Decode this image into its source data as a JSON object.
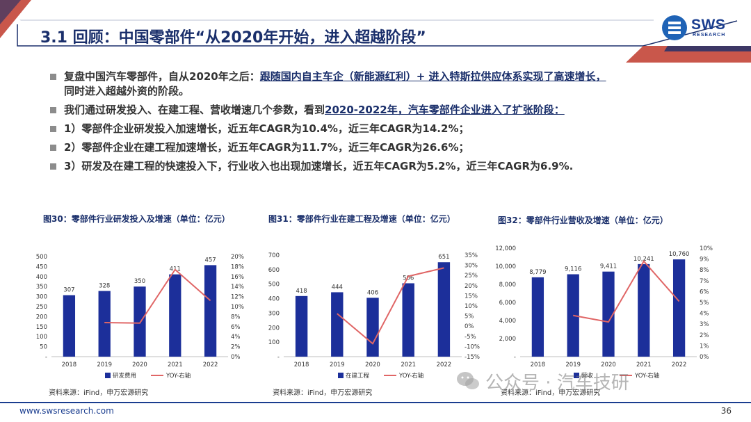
{
  "header": {
    "title": "3.1 回顾：中国零部件“从2020年开始，进入超越阶段”",
    "logo_text": "SWS",
    "logo_sub": "RESEARCH",
    "accent": "#c0392b",
    "brand": "#1a3d8f"
  },
  "bullets": [
    {
      "pre": "复盘中国汽车零部件，自从2020年之后：",
      "u": "跟随国内自主车企（新能源红利）+ 进入特斯拉供应体系实现了高速增长，",
      "post": "同时进入超越外资的阶段。"
    },
    {
      "pre": "我们通过研发投入、在建工程、营收增速几个参数，看到",
      "u": "2020-2022年，汽车零部件企业进入了扩张阶段：",
      "post": ""
    },
    {
      "pre": "1）零部件企业研发投入加速增长，近五年CAGR为10.4%，近三年CAGR为14.2%；",
      "u": "",
      "post": ""
    },
    {
      "pre": "2）零部件企业在建工程加速增长，近五年CAGR为11.7%，近三年CAGR为26.6%；",
      "u": "",
      "post": ""
    },
    {
      "pre": "3）研发及在建工程的快速投入下，行业收入也出现加速增长，近五年CAGR为5.2%，近三年CAGR为6.9%.",
      "u": "",
      "post": ""
    }
  ],
  "charts": [
    {
      "title": "图30：零部件行业研发投入及增速（单位：亿元）",
      "source": "资料来源：iFind，申万宏源研究"
    },
    {
      "title": "图31：零部件行业在建工程及增速（单位：亿元）",
      "source": "资料来源：iFind，申万宏源研究"
    },
    {
      "title": "图32：零部件行业营收及增速（单位：亿元）",
      "source": "资料来源：iFind，申万宏源研究"
    }
  ],
  "chart_data": [
    {
      "type": "bar",
      "categories": [
        "2018",
        "2019",
        "2020",
        "2021",
        "2022"
      ],
      "series": [
        {
          "name": "研发费用",
          "values": [
            307,
            328,
            350,
            411,
            457
          ],
          "labels": [
            "307",
            "328",
            "350",
            "411",
            "457"
          ],
          "color": "#1c2f9a"
        },
        {
          "name": "YOY-右轴",
          "type": "line",
          "values": [
            null,
            6.8,
            6.7,
            17.4,
            11.2
          ],
          "color": "#e06666"
        }
      ],
      "ylim": [
        0,
        500
      ],
      "yticks": [
        "-",
        "50",
        "100",
        "150",
        "200",
        "250",
        "300",
        "350",
        "400",
        "450",
        "500"
      ],
      "y2lim": [
        0,
        20
      ],
      "y2ticks": [
        "0%",
        "2%",
        "4%",
        "6%",
        "8%",
        "10%",
        "12%",
        "14%",
        "16%",
        "18%",
        "20%"
      ]
    },
    {
      "type": "bar",
      "categories": [
        "2018",
        "2019",
        "2020",
        "2021",
        "2022"
      ],
      "series": [
        {
          "name": "在建工程",
          "values": [
            418,
            444,
            406,
            506,
            651
          ],
          "labels": [
            "418",
            "444",
            "406",
            "506",
            "651"
          ],
          "color": "#1c2f9a"
        },
        {
          "name": "YOY-右轴",
          "type": "line",
          "values": [
            null,
            6.2,
            -8.6,
            24.6,
            28.7
          ],
          "color": "#e06666"
        }
      ],
      "ylim": [
        0,
        700
      ],
      "yticks": [
        "-",
        "100",
        "200",
        "300",
        "400",
        "500",
        "600",
        "700"
      ],
      "y2lim": [
        -15,
        35
      ],
      "y2ticks": [
        "-15%",
        "-10%",
        "-5%",
        "0%",
        "5%",
        "10%",
        "15%",
        "20%",
        "25%",
        "30%",
        "35%"
      ]
    },
    {
      "type": "bar",
      "categories": [
        "2018",
        "2019",
        "2020",
        "2021",
        "2022"
      ],
      "series": [
        {
          "name": "营收",
          "values": [
            8779,
            9116,
            9411,
            10241,
            10760
          ],
          "labels": [
            "8,779",
            "9,116",
            "9,411",
            "10,241",
            "10,760"
          ],
          "color": "#1c2f9a"
        },
        {
          "name": "YOY-右轴",
          "type": "line",
          "values": [
            null,
            3.8,
            3.2,
            8.8,
            5.1
          ],
          "color": "#e06666"
        }
      ],
      "ylim": [
        0,
        12000
      ],
      "yticks": [
        "-",
        "2,000",
        "4,000",
        "6,000",
        "8,000",
        "10,000",
        "12,000"
      ],
      "y2lim": [
        0,
        10
      ],
      "y2ticks": [
        "0%",
        "1%",
        "2%",
        "3%",
        "4%",
        "5%",
        "6%",
        "7%",
        "8%",
        "9%",
        "10%"
      ]
    }
  ],
  "watermark": "公众号 · 汽车技研",
  "footer": {
    "url": "www.swsresearch.com",
    "page": "36"
  }
}
